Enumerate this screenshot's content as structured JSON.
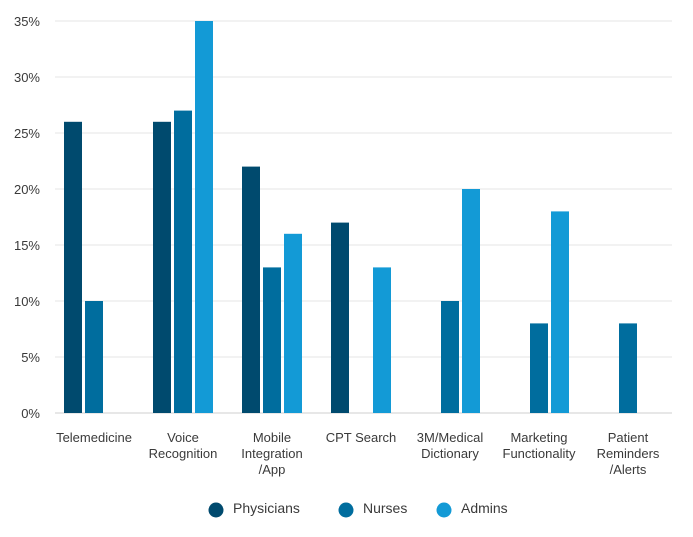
{
  "chart_data": {
    "type": "bar",
    "title": "",
    "xlabel": "",
    "ylabel": "",
    "ylim": [
      0,
      35
    ],
    "yticks": [
      "0%",
      "5%",
      "10%",
      "15%",
      "20%",
      "25%",
      "30%",
      "35%"
    ],
    "grid": true,
    "legend_position": "bottom-center",
    "categories": [
      [
        "Telemedicine"
      ],
      [
        "Voice",
        "Recognition"
      ],
      [
        "Mobile",
        "Integration",
        "/App"
      ],
      [
        "CPT Search"
      ],
      [
        "3M/Medical",
        "Dictionary"
      ],
      [
        "Marketing",
        "Functionality"
      ],
      [
        "Patient",
        "Reminders",
        "/Alerts"
      ]
    ],
    "series": [
      {
        "name": "Physicians",
        "color": "#004a6e",
        "values": [
          26,
          26,
          22,
          17,
          null,
          null,
          null
        ]
      },
      {
        "name": "Nurses",
        "color": "#006d9e",
        "values": [
          10,
          27,
          13,
          null,
          10,
          8,
          8
        ]
      },
      {
        "name": "Admins",
        "color": "#139ad6",
        "values": [
          null,
          35,
          16,
          13,
          20,
          18,
          null
        ]
      }
    ]
  }
}
